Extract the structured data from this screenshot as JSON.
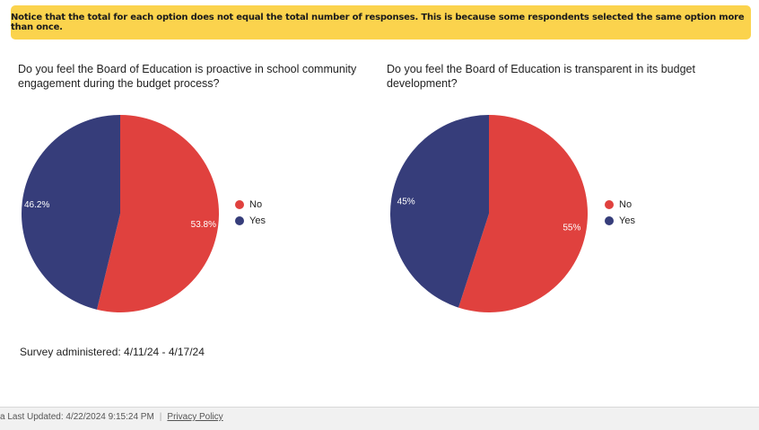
{
  "notice": "Notice that the total for each option does not equal the total number of responses. This is because some respondents selected the same option more than once.",
  "survey_text": "Survey administered: 4/11/24 - 4/17/24",
  "footer": {
    "last_updated": "a Last Updated: 4/22/2024 9:15:24 PM",
    "separator": "|",
    "privacy": "Privacy Policy"
  },
  "colors": {
    "No": "#e0413e",
    "Yes": "#363d7a"
  },
  "chart_data": [
    {
      "type": "pie",
      "title": "Do you feel the Board of Education is proactive in school community engagement during the budget process?",
      "labels": [
        "No",
        "Yes"
      ],
      "values": [
        53.8,
        46.2
      ],
      "value_labels": [
        "53.8%",
        "46.2%"
      ],
      "legend": "right"
    },
    {
      "type": "pie",
      "title": "Do you feel the Board of Education is transparent in its budget development?",
      "labels": [
        "No",
        "Yes"
      ],
      "values": [
        55,
        45
      ],
      "value_labels": [
        "55%",
        "45%"
      ],
      "legend": "right"
    }
  ]
}
